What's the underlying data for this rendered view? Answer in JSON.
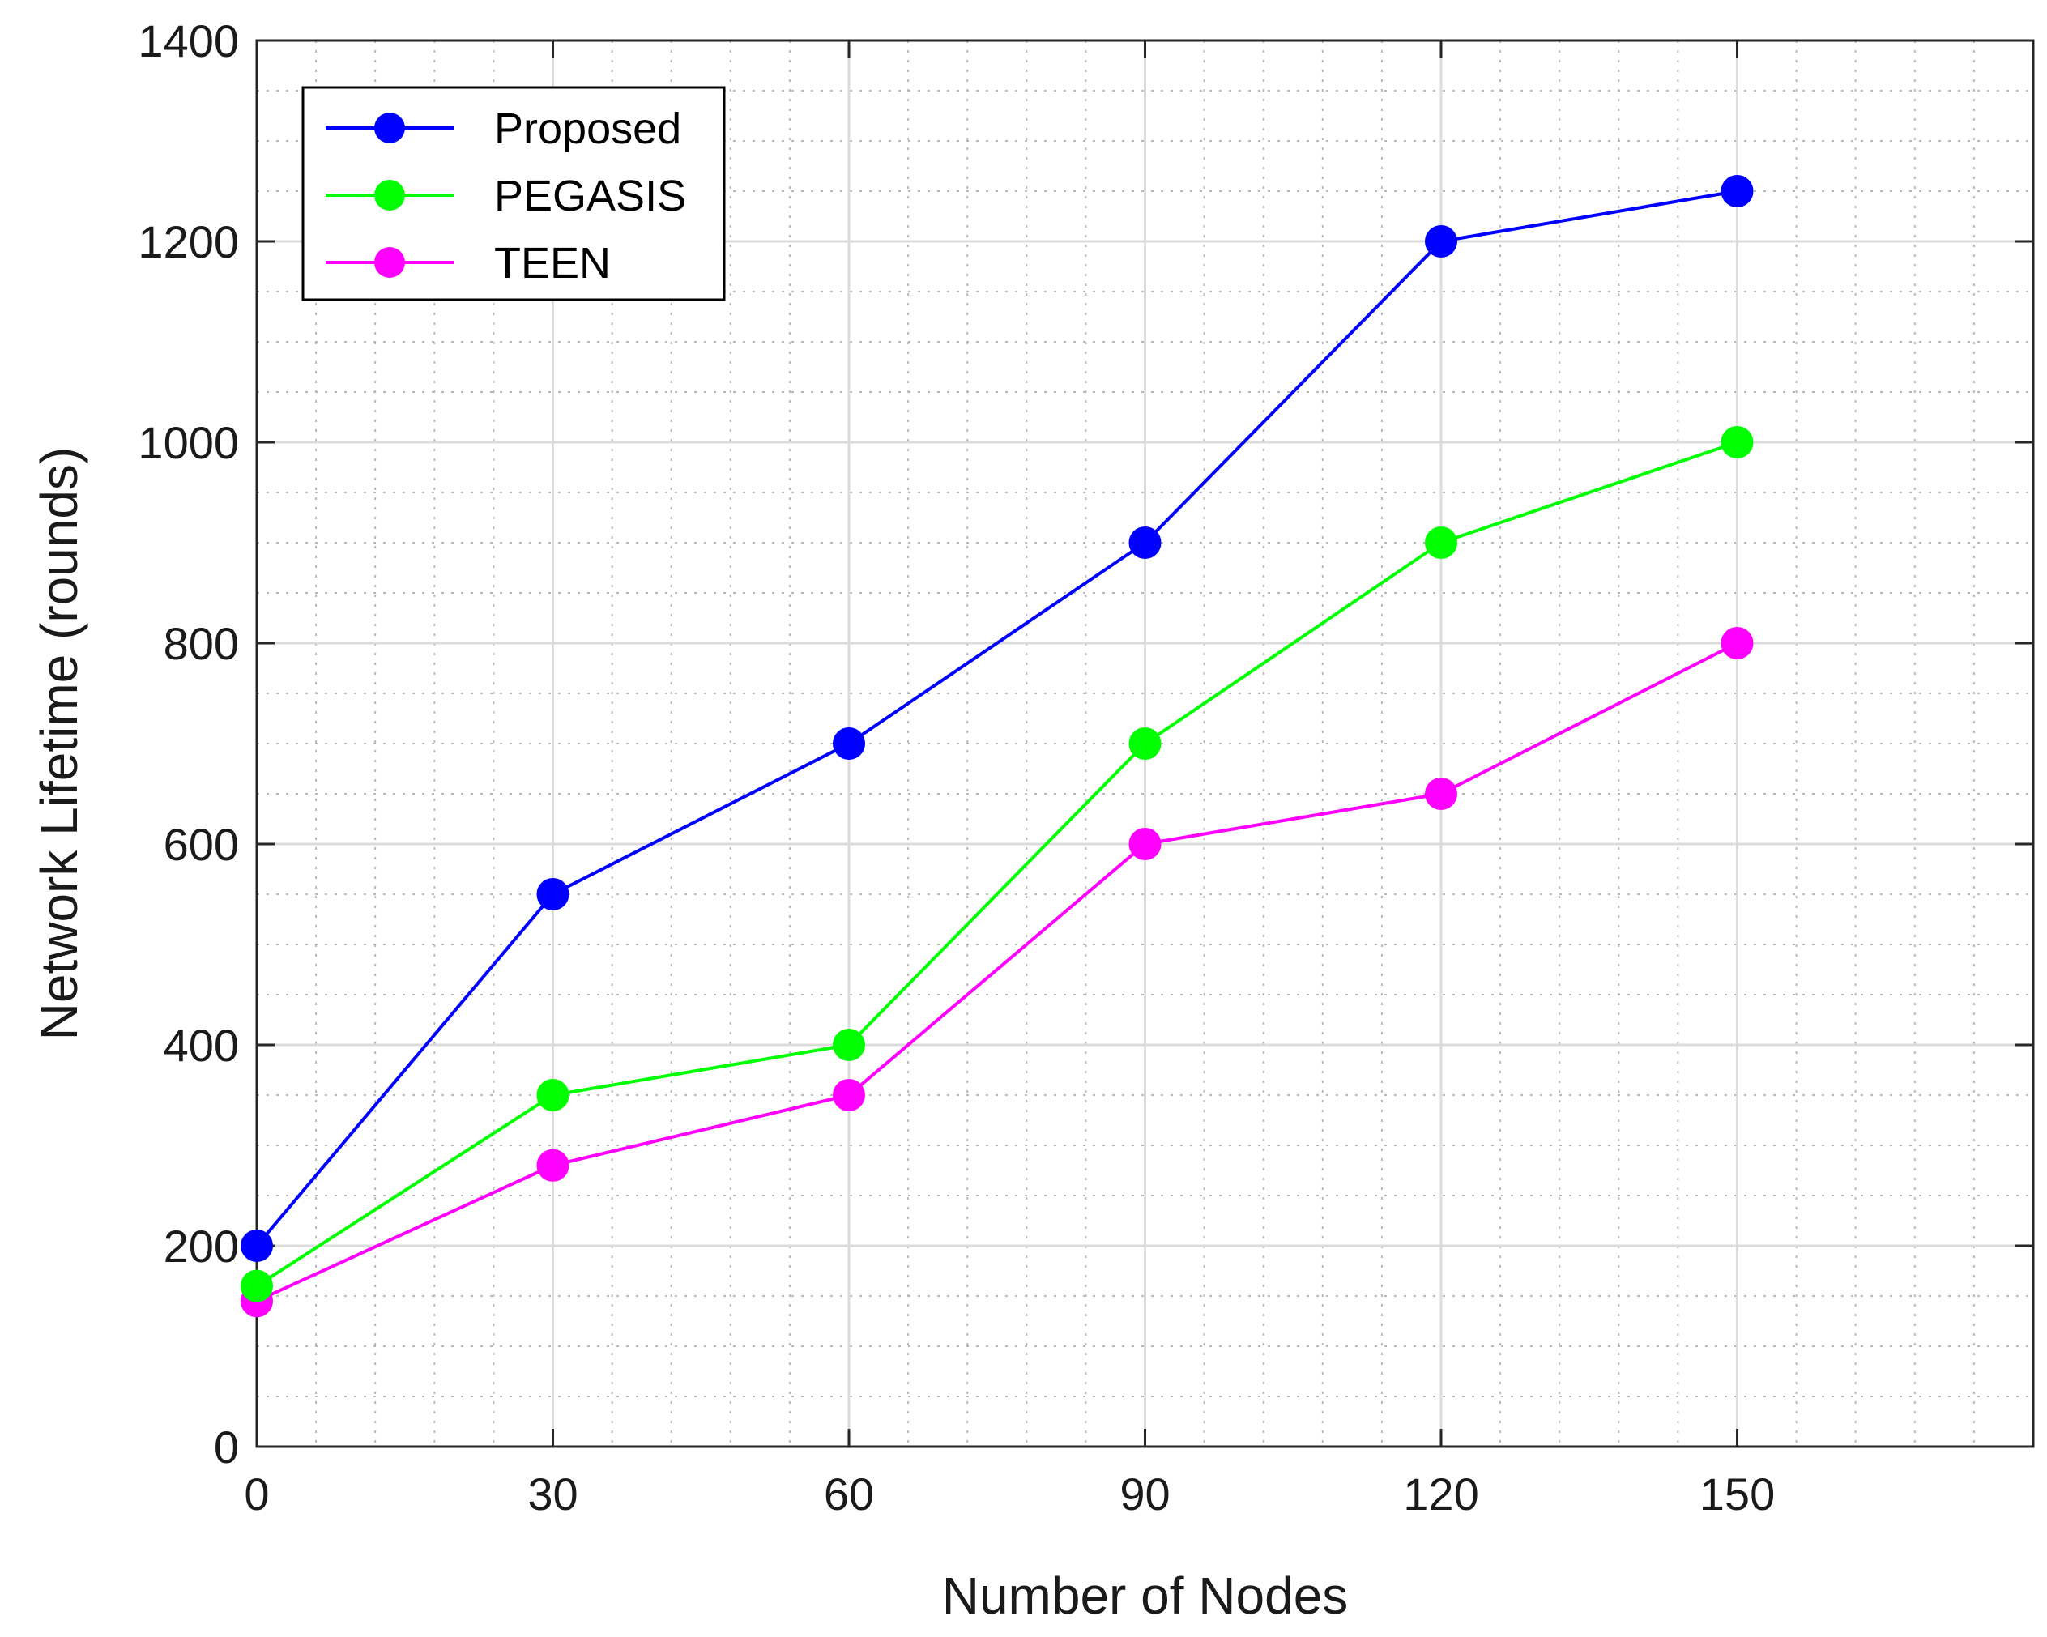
{
  "chart_data": {
    "type": "line",
    "title": "",
    "xlabel": "Number of Nodes",
    "ylabel": "Network Lifetime (rounds)",
    "x": [
      0,
      30,
      60,
      90,
      120,
      150
    ],
    "xlim": [
      0,
      180
    ],
    "ylim": [
      0,
      1400
    ],
    "xticks": [
      0,
      30,
      60,
      90,
      120,
      150
    ],
    "yticks": [
      0,
      200,
      400,
      600,
      800,
      1000,
      1200,
      1400
    ],
    "grid": true,
    "minor_grid": true,
    "legend_position": "top-left",
    "series": [
      {
        "name": "Proposed",
        "color": "#0000ff",
        "values": [
          200,
          550,
          700,
          900,
          1200,
          1250
        ]
      },
      {
        "name": "PEGASIS",
        "color": "#00ff00",
        "values": [
          160,
          350,
          400,
          700,
          900,
          1000
        ]
      },
      {
        "name": "TEEN",
        "color": "#ff00ff",
        "values": [
          145,
          280,
          350,
          600,
          650,
          800
        ]
      }
    ]
  }
}
